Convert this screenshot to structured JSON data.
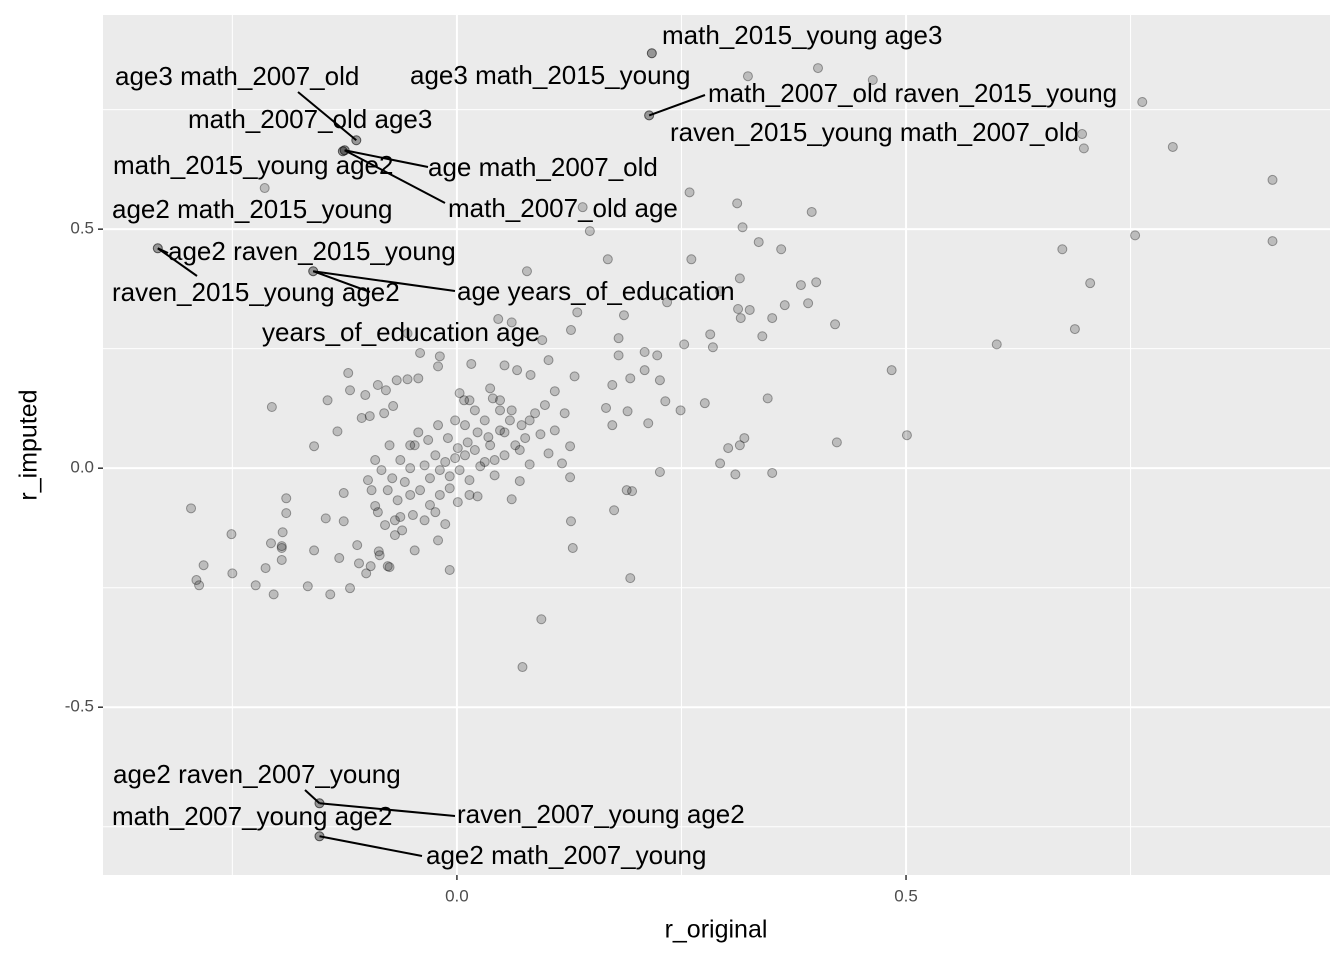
{
  "chart_data": {
    "type": "scatter",
    "x_label": "r_original",
    "y_label": "r_imputed",
    "xlim": [
      -0.394,
      0.972
    ],
    "ylim": [
      -0.851,
      0.948
    ],
    "xticks": [
      {
        "value": 0,
        "label": "0.0"
      },
      0.5
    ],
    "yticks": [
      -0.5,
      {
        "value": 0,
        "label": "0.0"
      },
      0.5
    ],
    "x_minor_grid": [
      -0.25,
      0.25,
      0.75
    ],
    "y_minor_grid": [
      -0.75,
      -0.25,
      0.25,
      0.75
    ],
    "color": "#000000",
    "opacity": 0.2,
    "x": [
      0.908,
      0.908,
      0.797,
      0.763,
      0.698,
      0.696,
      0.755,
      0.674,
      0.705,
      0.688,
      0.601,
      0.484,
      0.501,
      0.423,
      0.324,
      0.402,
      0.463,
      0.395,
      0.361,
      0.336,
      0.318,
      0.312,
      0.259,
      0.261,
      0.4,
      0.383,
      0.391,
      0.365,
      0.421,
      0.315,
      0.351,
      0.34,
      0.316,
      0.313,
      0.326,
      0.293,
      0.346,
      0.32,
      0.315,
      0.302,
      0.31,
      0.351,
      0.293,
      0.276,
      0.249,
      0.232,
      0.226,
      0.195,
      0.189,
      0.175,
      0.193,
      0.094,
      0.073,
      0.14,
      0.148,
      0.168,
      0.234,
      0.253,
      0.282,
      0.285,
      0.18,
      0.186,
      0.18,
      0.209,
      0.223,
      0.226,
      0.209,
      0.193,
      0.173,
      0.166,
      0.173,
      0.19,
      0.213,
      0.131,
      0.126,
      0.126,
      0.127,
      0.129,
      0.078,
      0.127,
      0.134,
      0.095,
      0.102,
      0.109,
      0.082,
      0.067,
      0.053,
      0.046,
      0.061,
      0.016,
      -0.214,
      -0.206,
      -0.296,
      -0.29,
      -0.287,
      -0.282,
      -0.251,
      -0.25,
      -0.224,
      -0.213,
      -0.204,
      -0.207,
      -0.195,
      -0.195,
      -0.194,
      -0.19,
      -0.19,
      -0.195,
      -0.166,
      -0.159,
      -0.159,
      -0.141,
      -0.146,
      -0.144,
      -0.131,
      -0.133,
      -0.126,
      -0.119,
      -0.121,
      -0.119,
      -0.126,
      -0.111,
      -0.109,
      -0.106,
      -0.102,
      -0.101,
      -0.097,
      -0.096,
      -0.091,
      -0.088,
      -0.087,
      -0.086,
      -0.079,
      -0.081,
      -0.075,
      -0.071,
      -0.077,
      -0.069,
      -0.067,
      -0.055,
      -0.055,
      -0.052,
      -0.049,
      -0.043,
      -0.041,
      -0.021,
      -0.019,
      -0.021,
      -0.008,
      -0.013,
      0.001,
      0.003,
      0.008,
      0.014,
      0.023,
      0.031,
      0.037,
      0.04,
      0.035,
      0.053,
      0.061,
      0.07,
      0.072,
      0.076,
      0.081,
      0.087,
      0.093,
      0.102,
      0.109,
      0.117,
      0.12,
      -0.019,
      -0.013,
      -0.008,
      -0.002,
      0.003,
      0.009,
      0.014,
      0.02,
      0.026,
      -0.024,
      -0.03,
      -0.036,
      -0.041,
      -0.047,
      -0.052,
      -0.058,
      -0.063,
      -0.066,
      -0.072,
      -0.077,
      -0.084,
      -0.088,
      -0.08,
      -0.069,
      -0.061,
      0.037,
      0.042,
      0.048,
      0.053,
      0.059,
      0.065,
      0.031,
      0.02,
      0.009,
      -0.002,
      -0.01,
      -0.021,
      -0.032,
      -0.043,
      -0.052,
      -0.008,
      -0.019,
      -0.03,
      0.014,
      0.042,
      0.07,
      0.081,
      0.098,
      0.048,
      0.061,
      0.012,
      0.001,
      0.023,
      0.048,
      -0.075,
      -0.091,
      -0.099,
      -0.095,
      -0.063,
      -0.047,
      -0.036,
      -0.024
    ],
    "y": [
      0.603,
      0.475,
      0.672,
      0.766,
      0.669,
      0.699,
      0.487,
      0.458,
      0.387,
      0.291,
      0.259,
      0.205,
      0.069,
      0.054,
      0.82,
      0.837,
      0.812,
      0.536,
      0.458,
      0.473,
      0.504,
      0.554,
      0.577,
      0.437,
      0.389,
      0.383,
      0.345,
      0.341,
      0.301,
      0.397,
      0.314,
      0.276,
      0.314,
      0.333,
      0.331,
      0.37,
      0.146,
      0.063,
      0.048,
      0.042,
      -0.013,
      -0.01,
      0.01,
      0.136,
      0.121,
      0.14,
      -0.008,
      -0.048,
      -0.046,
      -0.088,
      -0.23,
      -0.316,
      -0.416,
      0.546,
      0.496,
      0.437,
      0.347,
      0.259,
      0.28,
      0.253,
      0.272,
      0.32,
      0.236,
      0.243,
      0.236,
      0.184,
      0.205,
      0.188,
      0.174,
      0.126,
      0.09,
      0.119,
      0.094,
      0.192,
      0.046,
      -0.019,
      -0.111,
      -0.167,
      0.412,
      0.289,
      0.326,
      0.268,
      0.226,
      0.161,
      0.195,
      0.205,
      0.215,
      0.312,
      0.305,
      0.218,
      0.586,
      0.128,
      -0.084,
      -0.234,
      -0.245,
      -0.203,
      -0.138,
      -0.22,
      -0.245,
      -0.209,
      -0.264,
      -0.157,
      -0.163,
      -0.192,
      -0.134,
      -0.094,
      -0.063,
      -0.167,
      -0.247,
      -0.172,
      0.046,
      -0.264,
      -0.105,
      0.142,
      -0.188,
      0.077,
      -0.111,
      -0.251,
      0.199,
      0.163,
      -0.052,
      -0.161,
      -0.199,
      0.105,
      0.153,
      -0.22,
      0.109,
      -0.205,
      -0.079,
      0.174,
      -0.174,
      -0.182,
      0.163,
      0.115,
      -0.207,
      0.13,
      -0.205,
      -0.14,
      0.184,
      0.282,
      0.186,
      -0.056,
      -0.098,
      0.188,
      0.241,
      0.213,
      0.234,
      -0.151,
      -0.213,
      -0.117,
      -0.071,
      0.157,
      0.142,
      0.142,
      -0.059,
      0.013,
      0.167,
      0.146,
      0.065,
      0.075,
      -0.065,
      -0.027,
      0.09,
      0.063,
      0.008,
      0.115,
      0.071,
      0.031,
      0.079,
      0.01,
      0.115,
      -0.004,
      0.013,
      -0.017,
      0.021,
      -0.004,
      0.027,
      -0.025,
      0.038,
      0.004,
      0.027,
      -0.021,
      0.006,
      -0.046,
      0.048,
      0,
      -0.029,
      0.017,
      -0.067,
      -0.021,
      -0.046,
      -0.004,
      -0.092,
      -0.119,
      -0.109,
      -0.13,
      0.048,
      0.017,
      0.079,
      0.027,
      0.1,
      0.048,
      0.1,
      0.121,
      0.09,
      0.1,
      0.063,
      0.09,
      0.059,
      0.075,
      0.048,
      -0.042,
      -0.056,
      -0.077,
      -0.056,
      -0.015,
      0.038,
      0.1,
      0.132,
      0.142,
      0.121,
      0.054,
      0.042,
      0.075,
      0.121,
      0.048,
      0.017,
      -0.025,
      -0.046,
      -0.102,
      -0.172,
      -0.109,
      -0.092
    ],
    "annotations": [
      {
        "label": "math_2015_young age3",
        "x": 0.217,
        "y": 0.868
      },
      {
        "label": "age3 math_2015_young",
        "x": 0.217,
        "y": 0.868
      },
      {
        "label": "math_2007_old raven_2015_young",
        "x": 0.214,
        "y": 0.738
      },
      {
        "label": "raven_2015_young math_2007_old",
        "x": 0.214,
        "y": 0.738
      },
      {
        "label": "age3 math_2007_old",
        "x": -0.112,
        "y": 0.686
      },
      {
        "label": "math_2007_old age3",
        "x": -0.112,
        "y": 0.686
      },
      {
        "label": "math_2015_young age2",
        "x": -0.127,
        "y": 0.663
      },
      {
        "label": "age2 math_2015_young",
        "x": -0.127,
        "y": 0.663
      },
      {
        "label": "age math_2007_old",
        "x": -0.125,
        "y": 0.665
      },
      {
        "label": "math_2007_old age",
        "x": -0.125,
        "y": 0.665
      },
      {
        "label": "age2 raven_2015_young",
        "x": -0.333,
        "y": 0.46
      },
      {
        "label": "raven_2015_young age2",
        "x": -0.333,
        "y": 0.46
      },
      {
        "label": "age years_of_education",
        "x": -0.16,
        "y": 0.412
      },
      {
        "label": "years_of_education age",
        "x": -0.16,
        "y": 0.412
      },
      {
        "label": "age2 raven_2007_young",
        "x": -0.153,
        "y": -0.701
      },
      {
        "label": "raven_2007_young age2",
        "x": -0.153,
        "y": -0.701
      },
      {
        "label": "math_2007_young age2",
        "x": -0.153,
        "y": -0.77
      },
      {
        "label": "age2 math_2007_young",
        "x": -0.153,
        "y": -0.77
      }
    ]
  }
}
